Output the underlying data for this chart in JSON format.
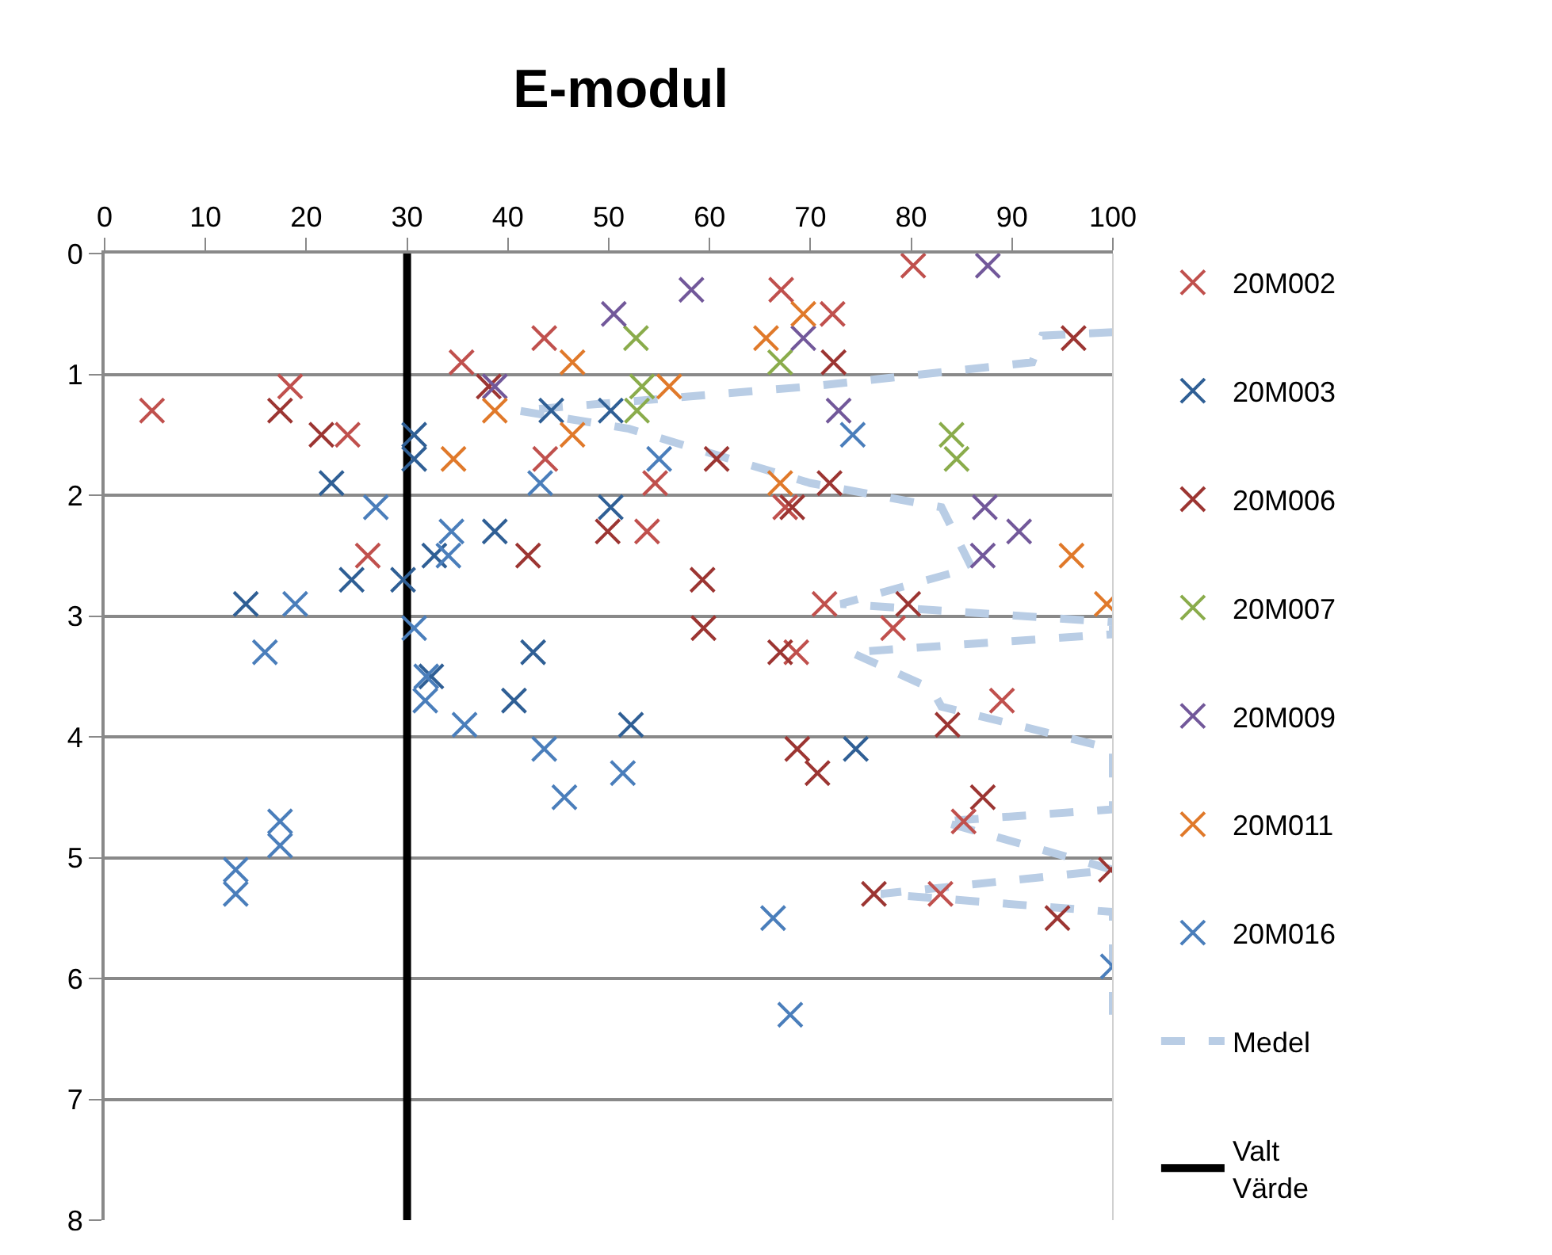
{
  "chart_data": {
    "type": "scatter",
    "title": "E-modul",
    "xlim": [
      0,
      100
    ],
    "xticks": [
      0,
      10,
      20,
      30,
      40,
      50,
      60,
      70,
      80,
      90,
      100
    ],
    "ylim": [
      8,
      0
    ],
    "yticks": [
      0,
      1,
      2,
      3,
      4,
      5,
      6,
      7,
      8
    ],
    "grid": "y",
    "legend": "right",
    "marker": "cross",
    "series": [
      {
        "name": "20M002",
        "color": "#c0504d",
        "x": [
          80.2,
          67.1,
          72.2,
          43.6,
          35.4,
          18.4,
          4.7,
          24.1,
          43.7,
          54.6,
          53.8,
          67.5,
          26.1,
          71.4,
          78.2,
          68.6,
          89,
          82.9,
          85.2
        ],
        "values": [
          0.1,
          0.3,
          0.5,
          0.7,
          0.9,
          1.1,
          1.3,
          1.5,
          1.7,
          1.9,
          2.3,
          2.1,
          2.5,
          2.9,
          3.1,
          3.3,
          3.7,
          5.3,
          4.7
        ]
      },
      {
        "name": "20M003",
        "color": "#2f5f95",
        "x": [
          30.7,
          30.7,
          22.5,
          24.5,
          29.6,
          14,
          32.7,
          38.7,
          42.5,
          40.6,
          32.4,
          44.3,
          50.2,
          50.2,
          52.2,
          74.5
        ],
        "values": [
          1.5,
          1.7,
          1.9,
          2.7,
          2.7,
          2.9,
          2.5,
          2.3,
          3.3,
          3.7,
          3.5,
          1.3,
          1.3,
          2.1,
          3.9,
          4.1
        ]
      },
      {
        "name": "20M006",
        "color": "#9c3532",
        "x": [
          96.1,
          72.3,
          38.1,
          17.4,
          21.5,
          60.7,
          71.9,
          68.2,
          49.9,
          42,
          59.3,
          59.4,
          79.7,
          67,
          83.6,
          68.7,
          70.7,
          87.1,
          76.3,
          94.5,
          99.8
        ],
        "values": [
          0.7,
          0.9,
          1.1,
          1.3,
          1.5,
          1.7,
          1.9,
          2.1,
          2.3,
          2.5,
          2.7,
          3.1,
          2.9,
          3.3,
          3.9,
          4.1,
          4.3,
          4.5,
          5.3,
          5.5,
          5.1
        ]
      },
      {
        "name": "20M007",
        "color": "#8aac4b",
        "x": [
          52.7,
          67,
          53.3,
          52.8,
          84,
          84.5
        ],
        "values": [
          0.7,
          0.9,
          1.1,
          1.3,
          1.5,
          1.7
        ]
      },
      {
        "name": "20M009",
        "color": "#72589a",
        "x": [
          87.6,
          58.2,
          50.5,
          69.3,
          38.7,
          72.8,
          87.3,
          90.7,
          87.1
        ],
        "values": [
          0.1,
          0.3,
          0.5,
          0.7,
          1.1,
          1.3,
          2.1,
          2.3,
          2.5
        ]
      },
      {
        "name": "20M011",
        "color": "#e0792a",
        "x": [
          46.4,
          65.6,
          69.3,
          56,
          38.7,
          46.4,
          34.6,
          67,
          95.9,
          99.4
        ],
        "values": [
          0.9,
          0.7,
          0.5,
          1.1,
          1.3,
          1.5,
          1.7,
          1.9,
          2.5,
          2.9
        ]
      },
      {
        "name": "20M016",
        "color": "#4a7ebb",
        "x": [
          74.2,
          55,
          43.2,
          26.9,
          34.4,
          34.1,
          18.9,
          15.9,
          30.7,
          31.9,
          31.8,
          35.7,
          43.6,
          45.6,
          51.4,
          17.4,
          17.4,
          13,
          13,
          66.3,
          68,
          100
        ],
        "values": [
          1.5,
          1.7,
          1.9,
          2.1,
          2.3,
          2.5,
          2.9,
          3.3,
          3.1,
          3.5,
          3.7,
          3.9,
          4.1,
          4.5,
          4.3,
          4.7,
          4.9,
          5.1,
          5.3,
          5.5,
          6.3,
          5.9
        ]
      },
      {
        "name": "Medel",
        "type": "line",
        "line_style": "dashed",
        "marker": "none",
        "color": "#b9cde5",
        "x": [
          100,
          93,
          92,
          70,
          41,
          52,
          62,
          70,
          83,
          86,
          73,
          100,
          100,
          74,
          82,
          83,
          100,
          100,
          83,
          100,
          77,
          100,
          100
        ],
        "values": [
          0.65,
          0.68,
          0.9,
          1.1,
          1.3,
          1.45,
          1.7,
          1.9,
          2.1,
          2.6,
          2.9,
          3.05,
          3.15,
          3.3,
          3.6,
          3.75,
          4.1,
          4.6,
          4.7,
          5.1,
          5.3,
          5.45,
          6.3
        ]
      },
      {
        "name": "Valt Värde",
        "type": "line",
        "line_style": "solid",
        "marker": "none",
        "color": "#000000",
        "x": [
          30,
          30
        ],
        "values": [
          0,
          8
        ]
      }
    ]
  }
}
